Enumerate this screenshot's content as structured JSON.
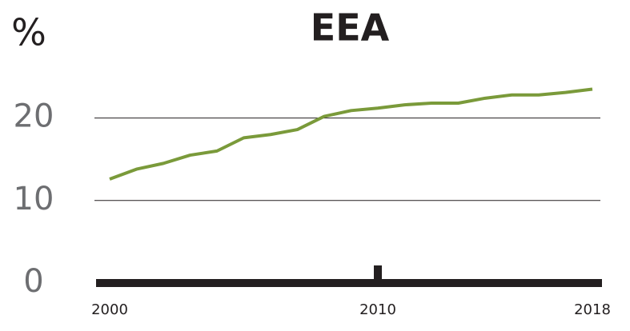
{
  "chart_data": {
    "type": "line",
    "title": "EEA",
    "y_label": "%",
    "x": [
      2000,
      2001,
      2002,
      2003,
      2004,
      2005,
      2006,
      2007,
      2008,
      2009,
      2010,
      2011,
      2012,
      2013,
      2014,
      2015,
      2016,
      2017,
      2018
    ],
    "series": [
      {
        "name": "EEA",
        "color": "#7a9a3a",
        "values": [
          12.6,
          13.8,
          14.5,
          15.5,
          16.0,
          17.6,
          18.0,
          18.6,
          20.2,
          20.9,
          21.2,
          21.6,
          21.8,
          21.8,
          22.4,
          22.8,
          22.8,
          23.1,
          23.5
        ]
      }
    ],
    "xlim": [
      2000,
      2018
    ],
    "xticks": [
      2000,
      2010,
      2018
    ],
    "ylim": [
      0,
      25
    ],
    "yticks": [
      0,
      10,
      20
    ],
    "grid": true
  }
}
